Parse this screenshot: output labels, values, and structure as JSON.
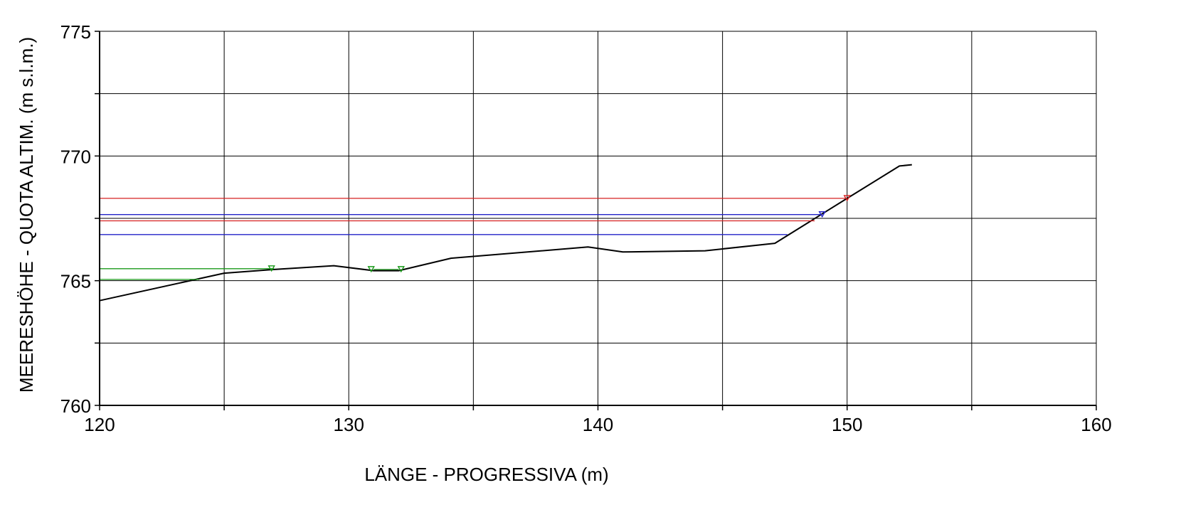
{
  "chart_data": {
    "type": "line",
    "xlabel": "LÄNGE - PROGRESSIVA  (m)",
    "ylabel": "MEERESHÖHE - QUOTA ALTIM.  (m s.l.m.)",
    "xlim": [
      120,
      160
    ],
    "ylim": [
      760,
      775
    ],
    "x_ticks": [
      120,
      130,
      140,
      150,
      160
    ],
    "x_tick_labels": [
      "120",
      "130",
      "140",
      "150",
      "160"
    ],
    "y_ticks": [
      760,
      765,
      770,
      775
    ],
    "y_tick_labels": [
      "760",
      "765",
      "770",
      "775"
    ],
    "x_gridlines": [
      120,
      125,
      130,
      135,
      140,
      145,
      150,
      155,
      160
    ],
    "y_gridlines": [
      760,
      762.5,
      765,
      767.5,
      770,
      772.5,
      775
    ],
    "grid": true,
    "legend": "none",
    "colors": {
      "profile": "#000000",
      "red": "#d62020",
      "blue": "#2323c8",
      "green": "#1a9a1a",
      "grid": "#000000"
    },
    "series": [
      {
        "color": "#000000",
        "kind": "profile",
        "x": [
          120,
          125,
          127,
          129.4,
          131,
          132,
          134.1,
          139.6,
          141,
          144.3,
          147.1,
          150,
          152.1,
          152.6
        ],
        "y": [
          764.2,
          765.3,
          765.45,
          765.6,
          765.4,
          765.4,
          765.9,
          766.35,
          766.15,
          766.2,
          766.5,
          768.3,
          769.6,
          769.65
        ]
      },
      {
        "color": "#d62020",
        "kind": "level",
        "x": [
          120,
          150
        ],
        "y": [
          768.3,
          768.3
        ],
        "marker": "down-triangle",
        "marker_x": 150
      },
      {
        "color": "#2323c8",
        "kind": "level",
        "x": [
          120,
          149
        ],
        "y": [
          767.65,
          767.65
        ],
        "marker": "down-triangle",
        "marker_x": 149
      },
      {
        "color": "#d62020",
        "kind": "level",
        "x": [
          120,
          148.7
        ],
        "y": [
          767.4,
          767.4
        ]
      },
      {
        "color": "#2323c8",
        "kind": "level",
        "x": [
          120,
          147.6
        ],
        "y": [
          766.85,
          766.85
        ]
      },
      {
        "color": "#1a9a1a",
        "kind": "level",
        "x": [
          120,
          127
        ],
        "y": [
          765.48,
          765.48
        ],
        "marker": "down-triangle",
        "marker_x": 126.9
      },
      {
        "color": "#1a9a1a",
        "kind": "level",
        "x": [
          131,
          132
        ],
        "y": [
          765.45,
          765.45
        ],
        "marker": "down-triangle",
        "marker_x": 130.9
      },
      {
        "color": "#1a9a1a",
        "kind": "level",
        "x": [
          132,
          132
        ],
        "y": [
          765.45,
          765.45
        ],
        "marker": "down-triangle",
        "marker_x": 132.1
      },
      {
        "color": "#1a9a1a",
        "kind": "level",
        "x": [
          120,
          124
        ],
        "y": [
          765.05,
          765.05
        ]
      }
    ]
  }
}
